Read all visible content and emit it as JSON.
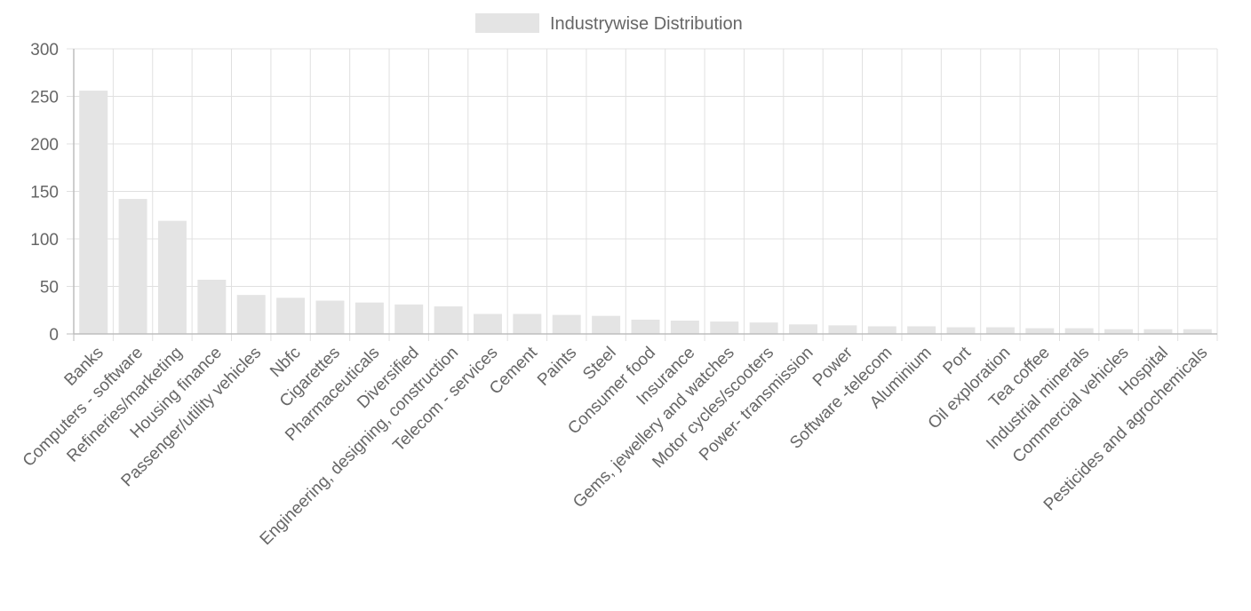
{
  "chart_data": {
    "type": "bar",
    "legend": {
      "label": "Industrywise Distribution",
      "position": "top",
      "interactive": true
    },
    "colors": {
      "bar_fill": "#e4e4e4",
      "grid": "#e0e0e0",
      "axis": "#bdbdbd",
      "text": "#666666"
    },
    "grid": true,
    "ylim": [
      0,
      300
    ],
    "yticks": [
      0,
      50,
      100,
      150,
      200,
      250,
      300
    ],
    "categories": [
      "Banks",
      "Computers - software",
      "Refineries/marketing",
      "Housing finance",
      "Passenger/utility vehicles",
      "Nbfc",
      "Cigarettes",
      "Pharmaceuticals",
      "Diversified",
      "Engineering, designing, construction",
      "Telecom - services",
      "Cement",
      "Paints",
      "Steel",
      "Consumer food",
      "Insurance",
      "Gems, jewellery and watches",
      "Motor cycles/scooters",
      "Power- transmission",
      "Power",
      "Software -telecom",
      "Aluminium",
      "Port",
      "Oil exploration",
      "Tea coffee",
      "Industrial minerals",
      "Commercial vehicles",
      "Hospital",
      "Pesticides and agrochemicals"
    ],
    "series": [
      {
        "name": "Industrywise Distribution",
        "values": [
          256,
          142,
          119,
          57,
          41,
          38,
          35,
          33,
          31,
          29,
          21,
          21,
          20,
          19,
          15,
          14,
          13,
          12,
          10,
          9,
          8,
          8,
          7,
          7,
          6,
          6,
          5,
          5,
          5
        ]
      }
    ]
  }
}
